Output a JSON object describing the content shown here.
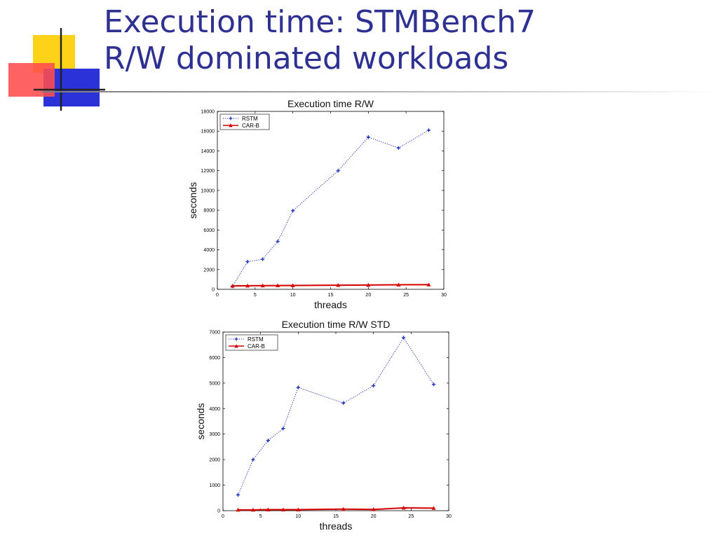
{
  "slide": {
    "title_line1": "Execution time: STMBench7",
    "title_line2": "R/W dominated workloads"
  },
  "colors": {
    "title": "#2e3192",
    "rstm": "#1f2fb8",
    "carb": "#d40000"
  },
  "chart_data": [
    {
      "type": "line",
      "title": "Execution time R/W",
      "xlabel": "threads",
      "ylabel": "seconds",
      "xlim": [
        0,
        30
      ],
      "ylim": [
        0,
        18000
      ],
      "xticks": [
        0,
        5,
        10,
        15,
        20,
        25,
        30
      ],
      "yticks": [
        0,
        2000,
        4000,
        6000,
        8000,
        10000,
        12000,
        14000,
        16000,
        18000
      ],
      "grid": false,
      "legend": "top-left",
      "x": [
        2,
        4,
        6,
        8,
        10,
        16,
        20,
        24,
        28
      ],
      "series": [
        {
          "name": "RSTM",
          "style": "dotted",
          "marker": "cross",
          "color": "#1f2fb8",
          "values": [
            300,
            2800,
            3050,
            4850,
            7950,
            12000,
            15400,
            14300,
            16100
          ]
        },
        {
          "name": "CAR-B",
          "style": "solid",
          "marker": "triangle",
          "color": "#d40000",
          "values": [
            350,
            360,
            370,
            380,
            390,
            420,
            430,
            460,
            470
          ]
        }
      ]
    },
    {
      "type": "line",
      "title": "Execution time R/W STD",
      "xlabel": "threads",
      "ylabel": "seconds",
      "xlim": [
        0,
        30
      ],
      "ylim": [
        0,
        7000
      ],
      "xticks": [
        0,
        5,
        10,
        15,
        20,
        25,
        30
      ],
      "yticks": [
        0,
        1000,
        2000,
        3000,
        4000,
        5000,
        6000,
        7000
      ],
      "grid": false,
      "legend": "top-left",
      "x": [
        2,
        4,
        6,
        8,
        10,
        16,
        20,
        24,
        28
      ],
      "series": [
        {
          "name": "RSTM",
          "style": "dotted",
          "marker": "cross",
          "color": "#1f2fb8",
          "values": [
            620,
            2000,
            2750,
            3220,
            4830,
            4220,
            4900,
            6780,
            4950
          ]
        },
        {
          "name": "CAR-B",
          "style": "solid",
          "marker": "triangle",
          "color": "#d40000",
          "values": [
            30,
            30,
            40,
            40,
            40,
            60,
            50,
            110,
            100
          ]
        }
      ]
    }
  ]
}
